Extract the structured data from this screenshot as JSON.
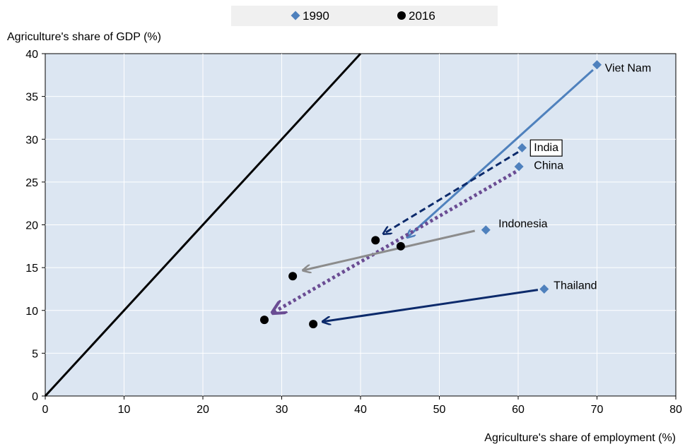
{
  "chart_data": {
    "type": "scatter",
    "title": "",
    "xlabel": "Agriculture's share of employment (%)",
    "ylabel": "Agriculture's share of GDP (%)",
    "xlim": [
      0,
      80
    ],
    "ylim": [
      0,
      40
    ],
    "xticks": [
      0,
      10,
      20,
      30,
      40,
      50,
      60,
      70,
      80
    ],
    "yticks": [
      0,
      5,
      10,
      15,
      20,
      25,
      30,
      35,
      40
    ],
    "grid": true,
    "legend": {
      "position": "top-center",
      "entries": [
        "1990",
        "2016"
      ]
    },
    "series": [
      {
        "name": "1990",
        "marker": "diamond",
        "color": "#4f81bd",
        "points": [
          {
            "label": "Viet Nam",
            "x": 70.0,
            "y": 38.7
          },
          {
            "label": "India",
            "x": 60.5,
            "y": 29.0
          },
          {
            "label": "China",
            "x": 60.1,
            "y": 26.8
          },
          {
            "label": "Indonesia",
            "x": 55.9,
            "y": 19.4
          },
          {
            "label": "Thailand",
            "x": 63.3,
            "y": 12.5
          }
        ]
      },
      {
        "name": "2016",
        "marker": "circle",
        "color": "#000000",
        "points": [
          {
            "label": "Viet Nam",
            "x": 45.1,
            "y": 17.5
          },
          {
            "label": "India",
            "x": 41.9,
            "y": 18.2
          },
          {
            "label": "China",
            "x": 27.8,
            "y": 8.9
          },
          {
            "label": "Indonesia",
            "x": 31.4,
            "y": 14.0
          },
          {
            "label": "Thailand",
            "x": 34.0,
            "y": 8.4
          }
        ]
      }
    ],
    "arrows": [
      {
        "country": "Viet Nam",
        "from": [
          69.5,
          38.1
        ],
        "to": [
          46.0,
          18.6
        ],
        "color": "#4f81bd",
        "style": "solid"
      },
      {
        "country": "India",
        "from": [
          60.0,
          28.5
        ],
        "to": [
          43.0,
          19.0
        ],
        "color": "#0c2a6b",
        "style": "dashed"
      },
      {
        "country": "China",
        "from": [
          59.7,
          26.2
        ],
        "to": [
          29.0,
          9.8
        ],
        "color": "#6a4c93",
        "style": "dotted"
      },
      {
        "country": "Indonesia",
        "from": [
          54.5,
          19.3
        ],
        "to": [
          32.8,
          14.7
        ],
        "color": "#8c8c8c",
        "style": "solid"
      },
      {
        "country": "Thailand",
        "from": [
          62.5,
          12.4
        ],
        "to": [
          35.3,
          8.7
        ],
        "color": "#0c2a6b",
        "style": "solid"
      }
    ],
    "reference_line": {
      "from": [
        0,
        0
      ],
      "to": [
        40,
        40
      ],
      "color": "#000000"
    },
    "annotations": [
      {
        "text": "Viet Nam",
        "x": 71.0,
        "y": 38.4,
        "boxed": false
      },
      {
        "text": "India",
        "x": 62.0,
        "y": 29.1,
        "boxed": true
      },
      {
        "text": "China",
        "x": 62.0,
        "y": 27.0,
        "boxed": false
      },
      {
        "text": "Indonesia",
        "x": 57.5,
        "y": 20.2,
        "boxed": false
      },
      {
        "text": "Thailand",
        "x": 64.5,
        "y": 13.0,
        "boxed": false
      }
    ],
    "colors": {
      "plot_background": "#dce6f2",
      "legend_background": "#f0f0f0",
      "gridline": "#ffffff"
    }
  }
}
